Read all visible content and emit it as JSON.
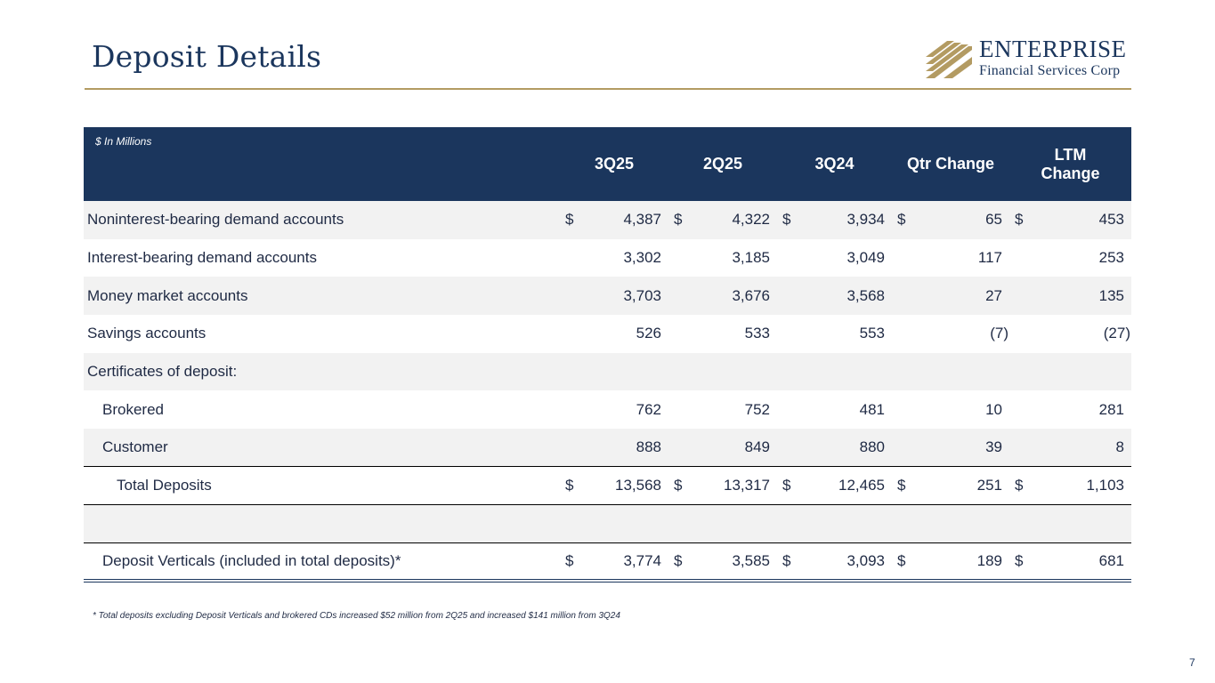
{
  "page": {
    "title": "Deposit Details",
    "page_number": "7",
    "footnote": "* Total deposits excluding Deposit Verticals and brokered CDs increased $52 million from 2Q25 and increased $141 million from 3Q24"
  },
  "logo": {
    "name": "ENTERPRISE",
    "subtitle": "Financial Services Corp",
    "icon": "stacked-diagonal-bars-logo-icon",
    "color": "#b39b62"
  },
  "colors": {
    "navy": "#1b365d",
    "gold": "#b39b62",
    "row_shade": "#f2f2f2"
  },
  "table": {
    "units_note": "$ In Millions",
    "headers": [
      "3Q25",
      "2Q25",
      "3Q24",
      "Qtr Change",
      "LTM\nChange"
    ],
    "header_ltm_line1": "LTM",
    "header_ltm_line2": "Change",
    "currency_symbol": "$",
    "rows": [
      {
        "label": "Noninterest-bearing demand accounts",
        "values": [
          "4,387",
          "4,322",
          "3,934",
          "65",
          "453"
        ]
      },
      {
        "label": "Interest-bearing demand accounts",
        "values": [
          "3,302",
          "3,185",
          "3,049",
          "117",
          "253"
        ]
      },
      {
        "label": "Money market accounts",
        "values": [
          "3,703",
          "3,676",
          "3,568",
          "27",
          "135"
        ]
      },
      {
        "label": "Savings accounts",
        "values": [
          "526",
          "533",
          "553",
          "(7)",
          "(27)"
        ]
      },
      {
        "label": "Certificates of deposit:",
        "values": [
          "",
          "",
          "",
          "",
          ""
        ]
      },
      {
        "label": "Brokered",
        "values": [
          "762",
          "752",
          "481",
          "10",
          "281"
        ]
      },
      {
        "label": "Customer",
        "values": [
          "888",
          "849",
          "880",
          "39",
          "8"
        ]
      },
      {
        "label": "Total Deposits",
        "values": [
          "13,568",
          "13,317",
          "12,465",
          "251",
          "1,103"
        ]
      },
      {
        "label": "Deposit Verticals (included in total deposits)*",
        "values": [
          "3,774",
          "3,585",
          "3,093",
          "189",
          "681"
        ]
      }
    ]
  }
}
